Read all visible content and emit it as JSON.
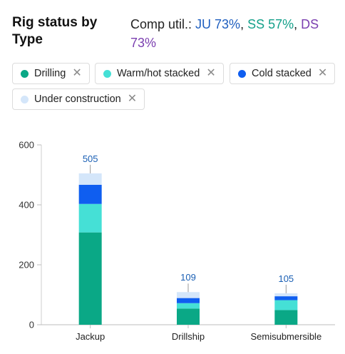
{
  "header": {
    "title": "Rig status by Type",
    "util_prefix": "Comp util.: ",
    "util_ju": "JU 73%",
    "util_sep1": ", ",
    "util_ss": "SS 57%",
    "util_sep2": ", ",
    "util_ds": "DS 73%"
  },
  "legend": {
    "close_icon": "close-icon",
    "items": [
      {
        "label": "Drilling",
        "color": "#0aa886"
      },
      {
        "label": "Warm/hot stacked",
        "color": "#45e0d6"
      },
      {
        "label": "Cold stacked",
        "color": "#0f5ef0"
      },
      {
        "label": "Under construction",
        "color": "#d4e6fa"
      }
    ]
  },
  "chart_data": {
    "type": "bar",
    "stacked": true,
    "categories": [
      "Jackup",
      "Drillship",
      "Semisubmersible"
    ],
    "series": [
      {
        "name": "Drilling",
        "values": [
          308,
          54,
          49
        ]
      },
      {
        "name": "Warm/hot stacked",
        "values": [
          95,
          18,
          33
        ]
      },
      {
        "name": "Cold stacked",
        "values": [
          64,
          17,
          13
        ]
      },
      {
        "name": "Under construction",
        "values": [
          38,
          20,
          10
        ]
      }
    ],
    "totals": [
      "505",
      "109",
      "105"
    ],
    "yticks": [
      "0",
      "200",
      "400",
      "600"
    ],
    "ylim": [
      0,
      600
    ],
    "legend_position": "top"
  }
}
